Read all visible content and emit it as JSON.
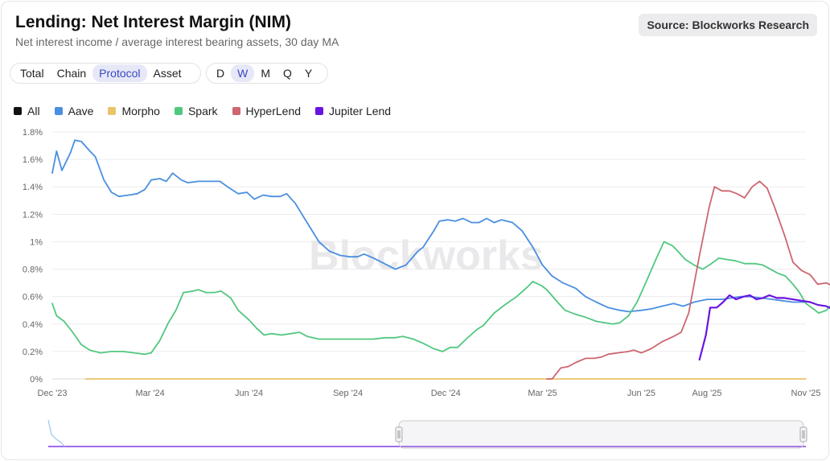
{
  "header": {
    "title": "Lending: Net Interest Margin (NIM)",
    "subtitle": "Net interest income / average interest bearing assets, 30 day MA",
    "source": "Source: Blockworks Research"
  },
  "view_tabs": [
    {
      "label": "Total",
      "active": false
    },
    {
      "label": "Chain",
      "active": false
    },
    {
      "label": "Protocol",
      "active": true
    },
    {
      "label": "Asset",
      "active": false
    }
  ],
  "period_tabs": [
    {
      "label": "D",
      "active": false
    },
    {
      "label": "W",
      "active": true
    },
    {
      "label": "M",
      "active": false
    },
    {
      "label": "Q",
      "active": false
    },
    {
      "label": "Y",
      "active": false
    }
  ],
  "watermark": "Blockworks",
  "colors": {
    "All": "#111111",
    "Aave": "#4a8fe0",
    "Morpho": "#e9c46a",
    "Spark": "#52c77f",
    "HyperLend": "#cd6670",
    "Jupiter Lend": "#6a13e0"
  },
  "chart_data": {
    "type": "line",
    "title": "Lending: Net Interest Margin (NIM)",
    "xlabel": "",
    "ylabel": "",
    "x_range": [
      "2023-12-01",
      "2025-11-01"
    ],
    "x_ticks": [
      "Dec '23",
      "Mar '24",
      "Jun '24",
      "Sep '24",
      "Dec '24",
      "Mar '25",
      "Jun '25",
      "Aug '25",
      "Nov '25"
    ],
    "y_ticks": [
      "0%",
      "0.2%",
      "0.4%",
      "0.6%",
      "0.8%",
      "1%",
      "1.2%",
      "1.4%",
      "1.6%",
      "1.8%"
    ],
    "ylim": [
      0,
      1.8
    ],
    "y_unit": "%",
    "legend": [
      "All",
      "Aave",
      "Morpho",
      "Spark",
      "HyperLend",
      "Jupiter Lend"
    ],
    "legend_position": "top-left",
    "grid": true,
    "series": [
      {
        "name": "Aave",
        "points": [
          [
            "2023-12-01",
            1.5
          ],
          [
            "2023-12-05",
            1.66
          ],
          [
            "2023-12-10",
            1.52
          ],
          [
            "2023-12-18",
            1.65
          ],
          [
            "2023-12-22",
            1.74
          ],
          [
            "2023-12-28",
            1.73
          ],
          [
            "2024-01-05",
            1.66
          ],
          [
            "2024-01-10",
            1.62
          ],
          [
            "2024-01-18",
            1.45
          ],
          [
            "2024-01-25",
            1.36
          ],
          [
            "2024-02-01",
            1.33
          ],
          [
            "2024-02-10",
            1.34
          ],
          [
            "2024-02-18",
            1.35
          ],
          [
            "2024-02-25",
            1.38
          ],
          [
            "2024-03-02",
            1.45
          ],
          [
            "2024-03-10",
            1.46
          ],
          [
            "2024-03-16",
            1.44
          ],
          [
            "2024-03-22",
            1.5
          ],
          [
            "2024-03-30",
            1.45
          ],
          [
            "2024-04-05",
            1.43
          ],
          [
            "2024-04-15",
            1.44
          ],
          [
            "2024-04-25",
            1.44
          ],
          [
            "2024-05-05",
            1.44
          ],
          [
            "2024-05-12",
            1.4
          ],
          [
            "2024-05-22",
            1.35
          ],
          [
            "2024-05-30",
            1.36
          ],
          [
            "2024-06-06",
            1.31
          ],
          [
            "2024-06-14",
            1.34
          ],
          [
            "2024-06-22",
            1.33
          ],
          [
            "2024-06-30",
            1.33
          ],
          [
            "2024-07-06",
            1.35
          ],
          [
            "2024-07-14",
            1.28
          ],
          [
            "2024-07-25",
            1.14
          ],
          [
            "2024-08-05",
            1.0
          ],
          [
            "2024-08-15",
            0.93
          ],
          [
            "2024-08-25",
            0.9
          ],
          [
            "2024-09-03",
            0.89
          ],
          [
            "2024-09-10",
            0.89
          ],
          [
            "2024-09-16",
            0.91
          ],
          [
            "2024-09-25",
            0.88
          ],
          [
            "2024-10-05",
            0.84
          ],
          [
            "2024-10-15",
            0.8
          ],
          [
            "2024-10-25",
            0.83
          ],
          [
            "2024-11-05",
            0.93
          ],
          [
            "2024-11-10",
            0.96
          ],
          [
            "2024-11-20",
            1.08
          ],
          [
            "2024-11-25",
            1.15
          ],
          [
            "2024-12-03",
            1.16
          ],
          [
            "2024-12-10",
            1.15
          ],
          [
            "2024-12-17",
            1.17
          ],
          [
            "2024-12-25",
            1.14
          ],
          [
            "2025-01-01",
            1.14
          ],
          [
            "2025-01-08",
            1.17
          ],
          [
            "2025-01-15",
            1.14
          ],
          [
            "2025-01-22",
            1.16
          ],
          [
            "2025-02-01",
            1.14
          ],
          [
            "2025-02-10",
            1.08
          ],
          [
            "2025-02-20",
            0.96
          ],
          [
            "2025-03-01",
            0.83
          ],
          [
            "2025-03-10",
            0.75
          ],
          [
            "2025-03-20",
            0.7
          ],
          [
            "2025-04-01",
            0.66
          ],
          [
            "2025-04-10",
            0.6
          ],
          [
            "2025-04-20",
            0.56
          ],
          [
            "2025-05-01",
            0.52
          ],
          [
            "2025-05-12",
            0.5
          ],
          [
            "2025-05-20",
            0.49
          ],
          [
            "2025-06-01",
            0.5
          ],
          [
            "2025-06-10",
            0.51
          ],
          [
            "2025-06-20",
            0.53
          ],
          [
            "2025-07-01",
            0.55
          ],
          [
            "2025-07-10",
            0.53
          ],
          [
            "2025-07-20",
            0.56
          ],
          [
            "2025-08-01",
            0.58
          ],
          [
            "2025-08-15",
            0.58
          ],
          [
            "2025-09-01",
            0.6
          ],
          [
            "2025-09-10",
            0.6
          ],
          [
            "2025-09-20",
            0.59
          ],
          [
            "2025-10-01",
            0.58
          ],
          [
            "2025-10-10",
            0.57
          ],
          [
            "2025-10-20",
            0.56
          ],
          [
            "2025-11-01",
            0.56
          ]
        ]
      },
      {
        "name": "Morpho",
        "points": [
          [
            "2024-01-01",
            0.0
          ],
          [
            "2025-11-01",
            0.0
          ]
        ]
      },
      {
        "name": "Spark",
        "points": [
          [
            "2023-12-01",
            0.55
          ],
          [
            "2023-12-05",
            0.46
          ],
          [
            "2023-12-12",
            0.42
          ],
          [
            "2023-12-20",
            0.34
          ],
          [
            "2023-12-28",
            0.25
          ],
          [
            "2024-01-05",
            0.21
          ],
          [
            "2024-01-15",
            0.19
          ],
          [
            "2024-01-25",
            0.2
          ],
          [
            "2024-02-05",
            0.2
          ],
          [
            "2024-02-15",
            0.19
          ],
          [
            "2024-02-25",
            0.18
          ],
          [
            "2024-03-02",
            0.19
          ],
          [
            "2024-03-10",
            0.28
          ],
          [
            "2024-03-18",
            0.41
          ],
          [
            "2024-03-25",
            0.5
          ],
          [
            "2024-04-01",
            0.63
          ],
          [
            "2024-04-10",
            0.64
          ],
          [
            "2024-04-15",
            0.65
          ],
          [
            "2024-04-22",
            0.63
          ],
          [
            "2024-04-30",
            0.63
          ],
          [
            "2024-05-06",
            0.64
          ],
          [
            "2024-05-15",
            0.59
          ],
          [
            "2024-05-22",
            0.5
          ],
          [
            "2024-06-01",
            0.43
          ],
          [
            "2024-06-08",
            0.37
          ],
          [
            "2024-06-15",
            0.32
          ],
          [
            "2024-06-22",
            0.33
          ],
          [
            "2024-07-01",
            0.32
          ],
          [
            "2024-07-10",
            0.33
          ],
          [
            "2024-07-18",
            0.34
          ],
          [
            "2024-07-25",
            0.31
          ],
          [
            "2024-08-05",
            0.29
          ],
          [
            "2024-08-15",
            0.29
          ],
          [
            "2024-08-25",
            0.29
          ],
          [
            "2024-09-05",
            0.29
          ],
          [
            "2024-09-15",
            0.29
          ],
          [
            "2024-09-25",
            0.29
          ],
          [
            "2024-10-05",
            0.3
          ],
          [
            "2024-10-15",
            0.3
          ],
          [
            "2024-10-22",
            0.31
          ],
          [
            "2024-11-01",
            0.29
          ],
          [
            "2024-11-10",
            0.26
          ],
          [
            "2024-11-20",
            0.22
          ],
          [
            "2024-11-28",
            0.2
          ],
          [
            "2024-12-05",
            0.23
          ],
          [
            "2024-12-12",
            0.23
          ],
          [
            "2024-12-20",
            0.29
          ],
          [
            "2024-12-30",
            0.36
          ],
          [
            "2025-01-05",
            0.39
          ],
          [
            "2025-01-15",
            0.48
          ],
          [
            "2025-01-25",
            0.54
          ],
          [
            "2025-02-05",
            0.6
          ],
          [
            "2025-02-15",
            0.67
          ],
          [
            "2025-02-20",
            0.71
          ],
          [
            "2025-02-28",
            0.68
          ],
          [
            "2025-03-05",
            0.65
          ],
          [
            "2025-03-15",
            0.56
          ],
          [
            "2025-03-22",
            0.5
          ],
          [
            "2025-04-01",
            0.47
          ],
          [
            "2025-04-10",
            0.45
          ],
          [
            "2025-04-20",
            0.42
          ],
          [
            "2025-04-28",
            0.41
          ],
          [
            "2025-05-05",
            0.4
          ],
          [
            "2025-05-12",
            0.41
          ],
          [
            "2025-05-20",
            0.46
          ],
          [
            "2025-05-28",
            0.56
          ],
          [
            "2025-06-05",
            0.7
          ],
          [
            "2025-06-15",
            0.88
          ],
          [
            "2025-06-22",
            1.0
          ],
          [
            "2025-06-30",
            0.97
          ],
          [
            "2025-07-05",
            0.93
          ],
          [
            "2025-07-12",
            0.87
          ],
          [
            "2025-07-20",
            0.83
          ],
          [
            "2025-07-28",
            0.8
          ],
          [
            "2025-08-05",
            0.84
          ],
          [
            "2025-08-12",
            0.88
          ],
          [
            "2025-08-20",
            0.87
          ],
          [
            "2025-08-28",
            0.86
          ],
          [
            "2025-09-05",
            0.84
          ],
          [
            "2025-09-15",
            0.84
          ],
          [
            "2025-09-22",
            0.83
          ],
          [
            "2025-09-29",
            0.8
          ],
          [
            "2025-10-06",
            0.77
          ],
          [
            "2025-10-13",
            0.75
          ],
          [
            "2025-10-20",
            0.69
          ],
          [
            "2025-10-26",
            0.63
          ],
          [
            "2025-11-01",
            0.55
          ],
          [
            "2025-11-08",
            0.51
          ],
          [
            "2025-11-13",
            0.48
          ],
          [
            "2025-11-20",
            0.5
          ],
          [
            "2025-11-26",
            0.55
          ],
          [
            "2025-12-01",
            0.63
          ]
        ]
      },
      {
        "name": "HyperLend",
        "points": [
          [
            "2025-03-05",
            0.0
          ],
          [
            "2025-03-10",
            0.0
          ],
          [
            "2025-03-18",
            0.08
          ],
          [
            "2025-03-25",
            0.09
          ],
          [
            "2025-04-01",
            0.12
          ],
          [
            "2025-04-10",
            0.15
          ],
          [
            "2025-04-18",
            0.15
          ],
          [
            "2025-04-25",
            0.16
          ],
          [
            "2025-05-01",
            0.18
          ],
          [
            "2025-05-10",
            0.19
          ],
          [
            "2025-05-20",
            0.2
          ],
          [
            "2025-05-25",
            0.21
          ],
          [
            "2025-06-01",
            0.19
          ],
          [
            "2025-06-10",
            0.22
          ],
          [
            "2025-06-20",
            0.27
          ],
          [
            "2025-07-01",
            0.31
          ],
          [
            "2025-07-08",
            0.34
          ],
          [
            "2025-07-15",
            0.48
          ],
          [
            "2025-07-25",
            0.9
          ],
          [
            "2025-08-03",
            1.25
          ],
          [
            "2025-08-08",
            1.4
          ],
          [
            "2025-08-15",
            1.37
          ],
          [
            "2025-08-22",
            1.37
          ],
          [
            "2025-08-29",
            1.35
          ],
          [
            "2025-09-05",
            1.32
          ],
          [
            "2025-09-12",
            1.4
          ],
          [
            "2025-09-19",
            1.44
          ],
          [
            "2025-09-26",
            1.39
          ],
          [
            "2025-10-03",
            1.25
          ],
          [
            "2025-10-12",
            1.05
          ],
          [
            "2025-10-20",
            0.85
          ],
          [
            "2025-10-28",
            0.79
          ],
          [
            "2025-11-05",
            0.76
          ],
          [
            "2025-11-12",
            0.69
          ],
          [
            "2025-11-20",
            0.7
          ],
          [
            "2025-11-28",
            0.67
          ]
        ]
      },
      {
        "name": "Jupiter Lend",
        "points": [
          [
            "2025-07-25",
            0.14
          ],
          [
            "2025-07-31",
            0.32
          ],
          [
            "2025-08-04",
            0.52
          ],
          [
            "2025-08-10",
            0.52
          ],
          [
            "2025-08-16",
            0.56
          ],
          [
            "2025-08-22",
            0.61
          ],
          [
            "2025-08-28",
            0.58
          ],
          [
            "2025-09-04",
            0.6
          ],
          [
            "2025-09-10",
            0.61
          ],
          [
            "2025-09-16",
            0.58
          ],
          [
            "2025-09-22",
            0.59
          ],
          [
            "2025-09-28",
            0.61
          ],
          [
            "2025-10-05",
            0.59
          ],
          [
            "2025-10-12",
            0.59
          ],
          [
            "2025-10-20",
            0.58
          ],
          [
            "2025-10-28",
            0.57
          ],
          [
            "2025-11-05",
            0.56
          ],
          [
            "2025-11-12",
            0.54
          ],
          [
            "2025-11-20",
            0.53
          ],
          [
            "2025-11-28",
            0.5
          ]
        ]
      }
    ]
  }
}
